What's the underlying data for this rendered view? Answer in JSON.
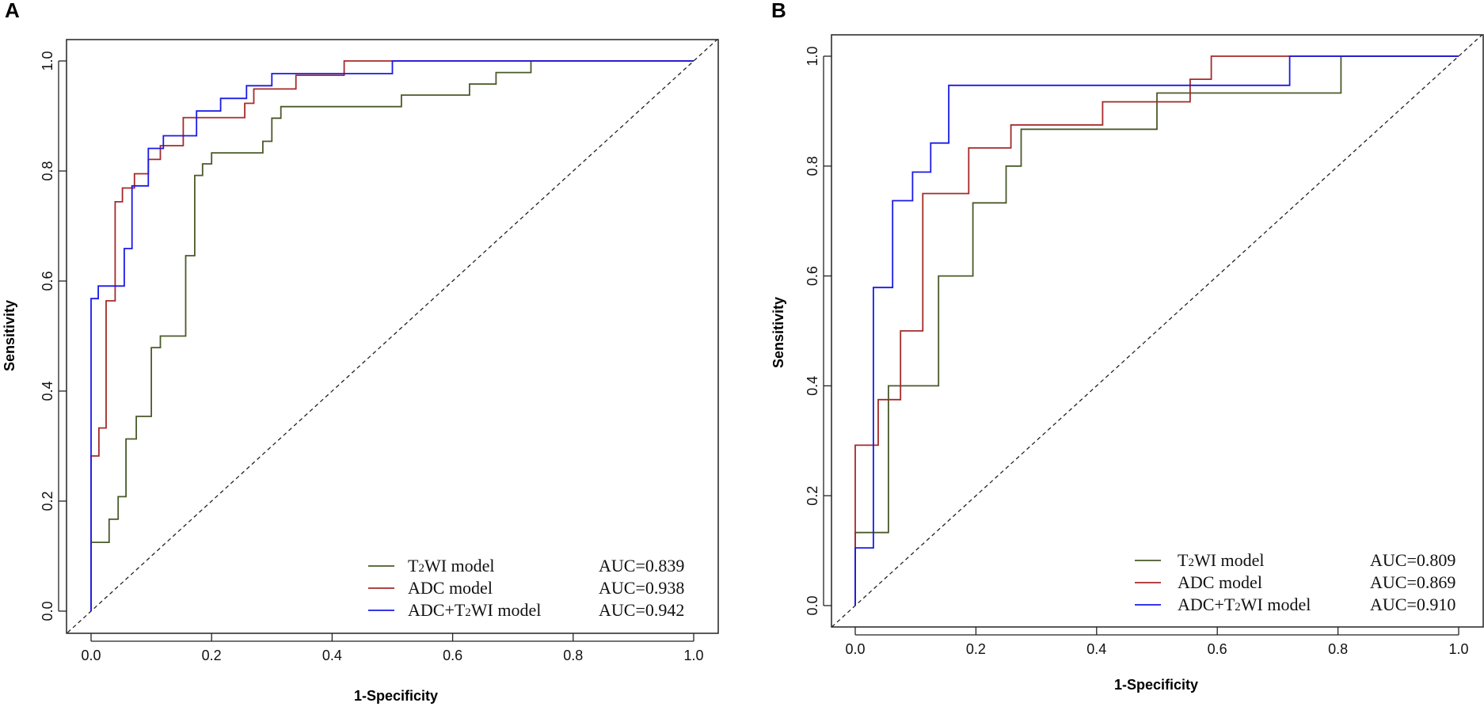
{
  "chart_data": [
    {
      "panel": "A",
      "type": "line",
      "subtype": "roc",
      "xlabel": "1-Specificity",
      "ylabel": "Sensitivity",
      "xlim": [
        0,
        1
      ],
      "ylim": [
        0,
        1
      ],
      "xticks": [
        "0.0",
        "0.2",
        "0.4",
        "0.6",
        "0.8",
        "1.0"
      ],
      "yticks": [
        "0.0",
        "0.2",
        "0.4",
        "0.6",
        "0.8",
        "1.0"
      ],
      "reference_line": "diagonal-dashed",
      "legend_position": "bottom-right",
      "series": [
        {
          "name": "T2WI model",
          "auc_label": "AUC=0.839",
          "color": "#4a5a2a",
          "points": [
            [
              0,
              0
            ],
            [
              0,
              0.125
            ],
            [
              0.03,
              0.125
            ],
            [
              0.03,
              0.167
            ],
            [
              0.045,
              0.167
            ],
            [
              0.045,
              0.208
            ],
            [
              0.058,
              0.208
            ],
            [
              0.058,
              0.313
            ],
            [
              0.075,
              0.313
            ],
            [
              0.075,
              0.354
            ],
            [
              0.1,
              0.354
            ],
            [
              0.1,
              0.479
            ],
            [
              0.115,
              0.479
            ],
            [
              0.115,
              0.5
            ],
            [
              0.157,
              0.5
            ],
            [
              0.157,
              0.646
            ],
            [
              0.172,
              0.646
            ],
            [
              0.172,
              0.792
            ],
            [
              0.185,
              0.792
            ],
            [
              0.185,
              0.813
            ],
            [
              0.2,
              0.813
            ],
            [
              0.2,
              0.833
            ],
            [
              0.285,
              0.833
            ],
            [
              0.285,
              0.854
            ],
            [
              0.3,
              0.854
            ],
            [
              0.3,
              0.896
            ],
            [
              0.315,
              0.896
            ],
            [
              0.315,
              0.917
            ],
            [
              0.515,
              0.917
            ],
            [
              0.515,
              0.938
            ],
            [
              0.628,
              0.938
            ],
            [
              0.628,
              0.958
            ],
            [
              0.672,
              0.958
            ],
            [
              0.672,
              0.979
            ],
            [
              0.73,
              0.979
            ],
            [
              0.73,
              1
            ],
            [
              1,
              1
            ]
          ]
        },
        {
          "name": "ADC model",
          "auc_label": "AUC=0.938",
          "color": "#a52a2a",
          "points": [
            [
              0,
              0
            ],
            [
              0,
              0.282
            ],
            [
              0.013,
              0.282
            ],
            [
              0.013,
              0.333
            ],
            [
              0.025,
              0.333
            ],
            [
              0.025,
              0.564
            ],
            [
              0.04,
              0.564
            ],
            [
              0.04,
              0.744
            ],
            [
              0.052,
              0.744
            ],
            [
              0.052,
              0.769
            ],
            [
              0.072,
              0.769
            ],
            [
              0.072,
              0.795
            ],
            [
              0.095,
              0.795
            ],
            [
              0.095,
              0.821
            ],
            [
              0.115,
              0.821
            ],
            [
              0.115,
              0.846
            ],
            [
              0.153,
              0.846
            ],
            [
              0.153,
              0.897
            ],
            [
              0.255,
              0.897
            ],
            [
              0.255,
              0.923
            ],
            [
              0.27,
              0.923
            ],
            [
              0.27,
              0.949
            ],
            [
              0.34,
              0.949
            ],
            [
              0.34,
              0.974
            ],
            [
              0.42,
              0.974
            ],
            [
              0.42,
              1
            ],
            [
              1,
              1
            ]
          ]
        },
        {
          "name": "ADC+T2WI model",
          "auc_label": "AUC=0.942",
          "color": "#1a1ae6",
          "points": [
            [
              0,
              0
            ],
            [
              0,
              0.568
            ],
            [
              0.012,
              0.568
            ],
            [
              0.012,
              0.591
            ],
            [
              0.055,
              0.591
            ],
            [
              0.055,
              0.659
            ],
            [
              0.068,
              0.659
            ],
            [
              0.068,
              0.773
            ],
            [
              0.095,
              0.773
            ],
            [
              0.095,
              0.841
            ],
            [
              0.12,
              0.841
            ],
            [
              0.12,
              0.864
            ],
            [
              0.175,
              0.864
            ],
            [
              0.175,
              0.909
            ],
            [
              0.215,
              0.909
            ],
            [
              0.215,
              0.932
            ],
            [
              0.258,
              0.932
            ],
            [
              0.258,
              0.955
            ],
            [
              0.3,
              0.955
            ],
            [
              0.3,
              0.977
            ],
            [
              0.5,
              0.977
            ],
            [
              0.5,
              1
            ],
            [
              1,
              1
            ]
          ]
        }
      ]
    },
    {
      "panel": "B",
      "type": "line",
      "subtype": "roc",
      "xlabel": "1-Specificity",
      "ylabel": "Sensitivity",
      "xlim": [
        0,
        1
      ],
      "ylim": [
        0,
        1
      ],
      "xticks": [
        "0.0",
        "0.2",
        "0.4",
        "0.6",
        "0.8",
        "1.0"
      ],
      "yticks": [
        "0.0",
        "0.2",
        "0.4",
        "0.6",
        "0.8",
        "1.0"
      ],
      "reference_line": "diagonal-dashed",
      "legend_position": "bottom-right",
      "series": [
        {
          "name": "T2WI model",
          "auc_label": "AUC=0.809",
          "color": "#4a5a2a",
          "points": [
            [
              0,
              0
            ],
            [
              0,
              0.133
            ],
            [
              0.055,
              0.133
            ],
            [
              0.055,
              0.4
            ],
            [
              0.138,
              0.4
            ],
            [
              0.138,
              0.6
            ],
            [
              0.195,
              0.6
            ],
            [
              0.195,
              0.733
            ],
            [
              0.25,
              0.733
            ],
            [
              0.25,
              0.8
            ],
            [
              0.275,
              0.8
            ],
            [
              0.275,
              0.867
            ],
            [
              0.5,
              0.867
            ],
            [
              0.5,
              0.933
            ],
            [
              0.805,
              0.933
            ],
            [
              0.805,
              1
            ],
            [
              1,
              1
            ]
          ]
        },
        {
          "name": "ADC model",
          "auc_label": "AUC=0.869",
          "color": "#a52a2a",
          "points": [
            [
              0,
              0
            ],
            [
              0,
              0.292
            ],
            [
              0.038,
              0.292
            ],
            [
              0.038,
              0.375
            ],
            [
              0.075,
              0.375
            ],
            [
              0.075,
              0.5
            ],
            [
              0.112,
              0.5
            ],
            [
              0.112,
              0.75
            ],
            [
              0.188,
              0.75
            ],
            [
              0.188,
              0.833
            ],
            [
              0.258,
              0.833
            ],
            [
              0.258,
              0.875
            ],
            [
              0.41,
              0.875
            ],
            [
              0.41,
              0.917
            ],
            [
              0.555,
              0.917
            ],
            [
              0.555,
              0.958
            ],
            [
              0.59,
              0.958
            ],
            [
              0.59,
              1
            ],
            [
              1,
              1
            ]
          ]
        },
        {
          "name": "ADC+T2WI model",
          "auc_label": "AUC=0.910",
          "color": "#1a1ae6",
          "points": [
            [
              0,
              0
            ],
            [
              0,
              0.105
            ],
            [
              0.03,
              0.105
            ],
            [
              0.03,
              0.579
            ],
            [
              0.062,
              0.579
            ],
            [
              0.062,
              0.737
            ],
            [
              0.095,
              0.737
            ],
            [
              0.095,
              0.789
            ],
            [
              0.125,
              0.789
            ],
            [
              0.125,
              0.842
            ],
            [
              0.155,
              0.842
            ],
            [
              0.155,
              0.947
            ],
            [
              0.72,
              0.947
            ],
            [
              0.72,
              1
            ],
            [
              1,
              1
            ]
          ]
        }
      ]
    }
  ]
}
